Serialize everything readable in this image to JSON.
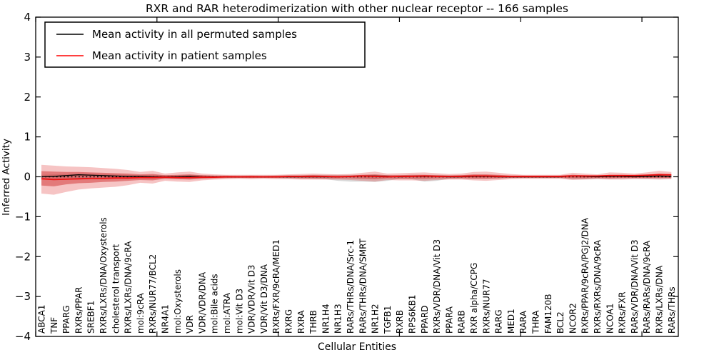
{
  "title": "RXR and RAR heterodimerization with other nuclear receptor -- 166 samples",
  "axes": {
    "xlabel": "Cellular Entities",
    "ylabel": "Inferred Activity",
    "yticks": [
      "4",
      "3",
      "2",
      "1",
      "0",
      "−1",
      "−2",
      "−3",
      "−4"
    ],
    "ytick_values": [
      4,
      3,
      2,
      1,
      0,
      -1,
      -2,
      -3,
      -4
    ],
    "xtick_values": [
      0,
      10,
      20,
      30,
      40,
      50
    ],
    "ylim": [
      -4,
      4
    ],
    "xlim": [
      0,
      53
    ]
  },
  "legend": [
    {
      "label": "Mean activity in all permuted samples",
      "color": "#000000"
    },
    {
      "label": "Mean activity in patient samples",
      "color": "#ff0000"
    }
  ],
  "colors": {
    "outer_band": "rgba(226,61,61,0.30)",
    "inner_band": "rgba(204,34,34,0.45)",
    "gray_band": "rgba(120,120,120,0.28)",
    "permuted_line": "#000000",
    "patient_line": "#ee1111",
    "zero_line": "#000000",
    "frame": "#000000"
  },
  "chart_data": {
    "type": "line",
    "title": "RXR and RAR heterodimerization with other nuclear receptor -- 166 samples",
    "xlabel": "Cellular Entities",
    "ylabel": "Inferred Activity",
    "ylim": [
      -4,
      4
    ],
    "grid": false,
    "legend_position": "upper left",
    "categories": [
      "ABCA1",
      "TNF",
      "PPARG",
      "RXRs/PPAR",
      "SREBF1",
      "RXRs/LXRs/DNA/Oxysterols",
      "cholesterol transport",
      "RXRs/LXRs/DNA/9cRA",
      "mol:9cRA",
      "RXRs/NUR77/BCL2",
      "NR4A1",
      "mol:Oxysterols",
      "VDR",
      "VDR/VDR/DNA",
      "mol:Bile acids",
      "mol:ATRA",
      "mol:Vit D3",
      "VDR/VDR/Vit D3",
      "VDR/Vit D3/DNA",
      "RXRs/FXR/9cRA/MED1",
      "RXRG",
      "RXRA",
      "THRB",
      "NR1H4",
      "NR1H3",
      "RARs/THRs/DNA/Src-1",
      "RARs/THRs/DNA/SMRT",
      "NR1H2",
      "TGFB1",
      "RXRB",
      "RPS6KB1",
      "PPARD",
      "RXRs/VDR/DNA/Vit D3",
      "PPARA",
      "RARB",
      "RXR alpha/CCPG",
      "RXRs/NUR77",
      "RARG",
      "MED1",
      "RARA",
      "THRA",
      "FAM120B",
      "BCL2",
      "NCOR2",
      "RXRs/PPAR/9cRA/PGJ2/DNA",
      "RXRs/RXRs/DNA/9cRA",
      "NCOA1",
      "RXRs/FXR",
      "RARs/VDR/DNA/Vit D3",
      "RARs/RARs/DNA/9cRA",
      "RXRs/LXRs/DNA",
      "RARs/THRs"
    ],
    "series": [
      {
        "name": "Mean activity in all permuted samples",
        "color": "#000000",
        "values": [
          0.0,
          0.01,
          0.03,
          0.05,
          0.04,
          0.03,
          0.02,
          0.01,
          0.01,
          0.0,
          0.0,
          0.0,
          0.01,
          0.0,
          0.0,
          0.0,
          0.0,
          0.0,
          0.0,
          0.0,
          0.0,
          0.0,
          0.0,
          0.0,
          0.0,
          0.01,
          0.02,
          0.02,
          0.01,
          0.0,
          0.01,
          0.01,
          0.01,
          0.0,
          0.0,
          0.01,
          0.01,
          0.0,
          0.0,
          0.0,
          0.0,
          0.0,
          0.0,
          0.02,
          0.01,
          0.0,
          0.01,
          0.01,
          0.0,
          0.01,
          0.02,
          0.01
        ]
      },
      {
        "name": "Mean activity in patient samples",
        "color": "#ff0000",
        "values": [
          -0.05,
          -0.07,
          -0.06,
          -0.05,
          -0.04,
          -0.04,
          -0.03,
          -0.03,
          -0.02,
          -0.02,
          -0.01,
          -0.02,
          -0.02,
          -0.01,
          -0.01,
          0.0,
          0.0,
          0.0,
          0.0,
          0.0,
          0.01,
          0.01,
          0.01,
          0.01,
          0.0,
          0.01,
          0.02,
          0.01,
          0.0,
          0.01,
          0.01,
          0.02,
          0.01,
          0.01,
          0.01,
          0.02,
          0.02,
          0.01,
          0.01,
          0.01,
          0.01,
          0.01,
          0.01,
          0.02,
          0.02,
          0.02,
          0.03,
          0.03,
          0.03,
          0.04,
          0.05,
          0.05
        ]
      }
    ],
    "bands": [
      {
        "name": "patient samples spread (outer)",
        "upper": [
          0.3,
          0.28,
          0.26,
          0.25,
          0.24,
          0.22,
          0.2,
          0.17,
          0.12,
          0.15,
          0.08,
          0.11,
          0.13,
          0.08,
          0.06,
          0.05,
          0.05,
          0.05,
          0.05,
          0.05,
          0.06,
          0.07,
          0.08,
          0.07,
          0.06,
          0.07,
          0.1,
          0.13,
          0.08,
          0.09,
          0.1,
          0.11,
          0.09,
          0.07,
          0.08,
          0.12,
          0.13,
          0.1,
          0.07,
          0.05,
          0.05,
          0.05,
          0.05,
          0.1,
          0.08,
          0.06,
          0.11,
          0.1,
          0.08,
          0.11,
          0.15,
          0.12
        ],
        "lower": [
          -0.42,
          -0.45,
          -0.38,
          -0.32,
          -0.29,
          -0.27,
          -0.25,
          -0.21,
          -0.15,
          -0.17,
          -0.1,
          -0.12,
          -0.13,
          -0.09,
          -0.07,
          -0.06,
          -0.05,
          -0.06,
          -0.05,
          -0.06,
          -0.06,
          -0.07,
          -0.07,
          -0.07,
          -0.07,
          -0.08,
          -0.1,
          -0.12,
          -0.08,
          -0.09,
          -0.09,
          -0.1,
          -0.08,
          -0.07,
          -0.07,
          -0.09,
          -0.1,
          -0.08,
          -0.06,
          -0.05,
          -0.05,
          -0.05,
          -0.05,
          -0.08,
          -0.07,
          -0.06,
          -0.07,
          -0.07,
          -0.06,
          -0.06,
          -0.07,
          -0.06
        ]
      },
      {
        "name": "patient samples spread (inner)",
        "upper": [
          0.14,
          0.13,
          0.12,
          0.12,
          0.11,
          0.1,
          0.09,
          0.08,
          0.06,
          0.07,
          0.04,
          0.05,
          0.06,
          0.04,
          0.03,
          0.03,
          0.02,
          0.03,
          0.02,
          0.03,
          0.03,
          0.03,
          0.04,
          0.03,
          0.03,
          0.03,
          0.05,
          0.06,
          0.04,
          0.04,
          0.05,
          0.05,
          0.04,
          0.03,
          0.04,
          0.06,
          0.06,
          0.05,
          0.03,
          0.03,
          0.02,
          0.02,
          0.03,
          0.05,
          0.04,
          0.03,
          0.05,
          0.05,
          0.04,
          0.05,
          0.08,
          0.06
        ],
        "lower": [
          -0.22,
          -0.24,
          -0.19,
          -0.16,
          -0.15,
          -0.13,
          -0.12,
          -0.1,
          -0.08,
          -0.09,
          -0.05,
          -0.06,
          -0.07,
          -0.05,
          -0.04,
          -0.03,
          -0.03,
          -0.03,
          -0.03,
          -0.03,
          -0.03,
          -0.04,
          -0.04,
          -0.04,
          -0.04,
          -0.04,
          -0.05,
          -0.06,
          -0.04,
          -0.05,
          -0.05,
          -0.05,
          -0.04,
          -0.04,
          -0.04,
          -0.05,
          -0.05,
          -0.04,
          -0.03,
          -0.03,
          -0.03,
          -0.03,
          -0.03,
          -0.04,
          -0.04,
          -0.03,
          -0.04,
          -0.03,
          -0.03,
          -0.03,
          -0.03,
          -0.03
        ]
      },
      {
        "name": "permuted samples spread",
        "upper": [
          0.05,
          0.06,
          0.07,
          0.08,
          0.08,
          0.07,
          0.06,
          0.05,
          0.04,
          0.05,
          0.04,
          0.04,
          0.05,
          0.04,
          0.03,
          0.03,
          0.03,
          0.03,
          0.03,
          0.03,
          0.04,
          0.04,
          0.05,
          0.05,
          0.05,
          0.05,
          0.05,
          0.05,
          0.04,
          0.04,
          0.05,
          0.05,
          0.05,
          0.04,
          0.04,
          0.05,
          0.05,
          0.04,
          0.03,
          0.03,
          0.03,
          0.03,
          0.03,
          0.05,
          0.04,
          0.04,
          0.04,
          0.04,
          0.04,
          0.04,
          0.05,
          0.04
        ],
        "lower": [
          -0.05,
          -0.06,
          -0.07,
          -0.07,
          -0.06,
          -0.06,
          -0.05,
          -0.05,
          -0.04,
          -0.05,
          -0.04,
          -0.04,
          -0.05,
          -0.04,
          -0.03,
          -0.03,
          -0.03,
          -0.03,
          -0.03,
          -0.03,
          -0.04,
          -0.04,
          -0.05,
          -0.06,
          -0.1,
          -0.12,
          -0.12,
          -0.13,
          -0.1,
          -0.05,
          -0.06,
          -0.12,
          -0.1,
          -0.05,
          -0.04,
          -0.05,
          -0.05,
          -0.04,
          -0.03,
          -0.03,
          -0.03,
          -0.03,
          -0.03,
          -0.06,
          -0.06,
          -0.05,
          -0.05,
          -0.05,
          -0.04,
          -0.05,
          -0.05,
          -0.04
        ]
      }
    ],
    "zero_reference_line": 0
  }
}
